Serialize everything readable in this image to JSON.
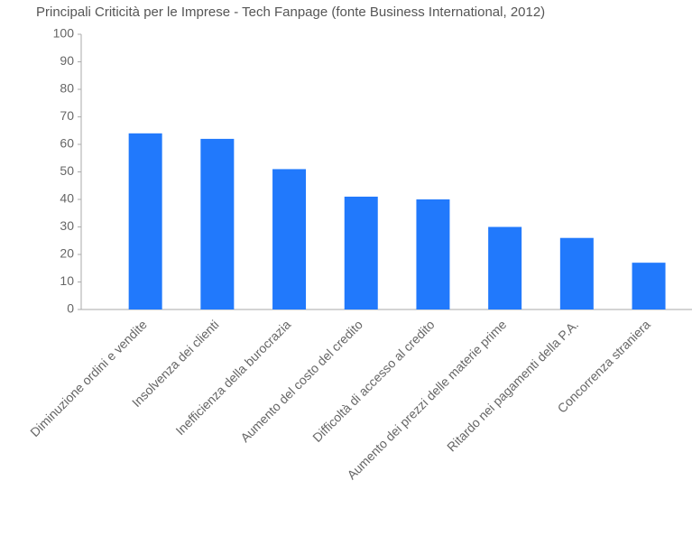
{
  "chart_data": {
    "type": "bar",
    "title": "Principali Criticità per le Imprese - Tech Fanpage (fonte Business International, 2012)",
    "categories": [
      "Diminuzione ordini e vendite",
      "Insolvenza dei clienti",
      "Inefficienza della burocrazia",
      "Aumento del costo del credito",
      "Difficoltà di accesso al credito",
      "Aumento dei prezzi delle materie prime",
      "Ritardo nei pagamenti della P.A.",
      "Concorrenza straniera"
    ],
    "values": [
      64,
      62,
      51,
      41,
      40,
      30,
      26,
      17
    ],
    "color": "#2179fc",
    "ylim": [
      0,
      100
    ],
    "yticks": [
      0,
      10,
      20,
      30,
      40,
      50,
      60,
      70,
      80,
      90,
      100
    ],
    "grid": false
  }
}
